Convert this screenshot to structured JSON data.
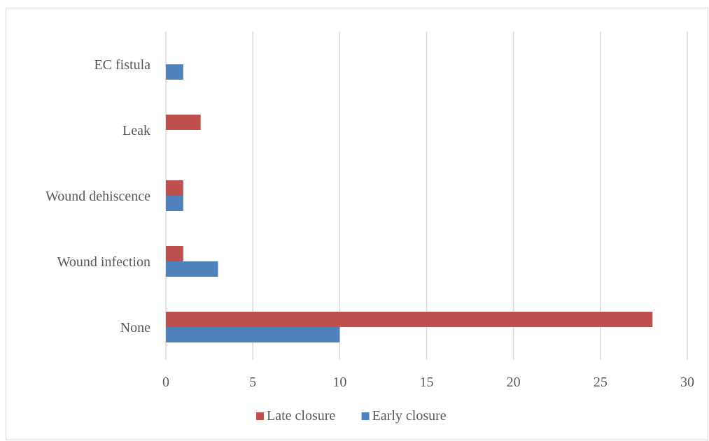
{
  "chart_data": {
    "type": "bar",
    "orientation": "horizontal",
    "categories": [
      "None",
      "Wound infection",
      "Wound dehiscence",
      "Leak",
      "EC fistula"
    ],
    "series": [
      {
        "name": "Late closure",
        "values": [
          28,
          1,
          1,
          2,
          0
        ],
        "color": "#c0504d"
      },
      {
        "name": "Early closure",
        "values": [
          10,
          3,
          1,
          0,
          1
        ],
        "color": "#4f81bd"
      }
    ],
    "xlim": [
      0,
      30
    ],
    "x_ticks": [
      0,
      5,
      10,
      15,
      20,
      25,
      30
    ],
    "grid": true,
    "legend_position": "bottom"
  }
}
